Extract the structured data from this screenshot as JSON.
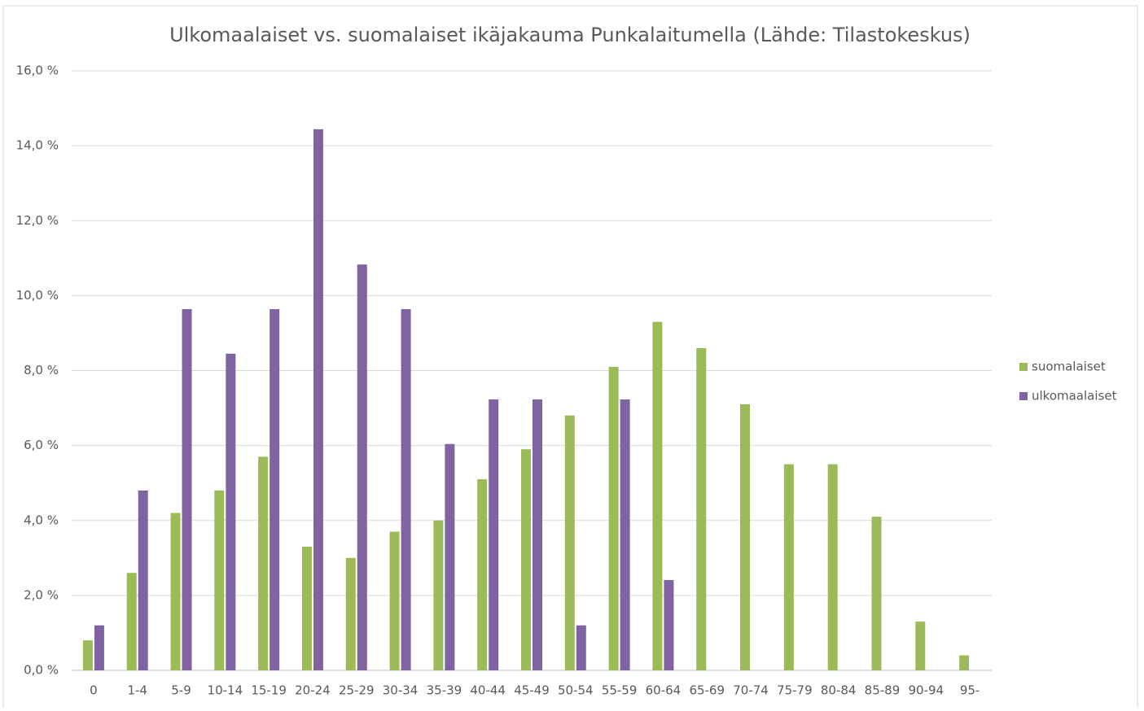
{
  "chart_data": {
    "type": "bar",
    "title": "Ulkomaalaiset vs. suomalaiset ikäjakauma Punkalaitumella (Lähde: Tilastokeskus)",
    "categories": [
      "0",
      "1-4",
      "5-9",
      "10-14",
      "15-19",
      "20-24",
      "25-29",
      "30-34",
      "35-39",
      "40-44",
      "45-49",
      "50-54",
      "55-59",
      "60-64",
      "65-69",
      "70-74",
      "75-79",
      "80-84",
      "85-89",
      "90-94",
      "95-"
    ],
    "series": [
      {
        "name": "suomalaiset",
        "color": "#9bbb59",
        "values": [
          0.8,
          2.6,
          4.2,
          4.8,
          5.7,
          3.3,
          3.0,
          3.7,
          4.0,
          5.1,
          5.9,
          6.8,
          8.1,
          9.3,
          8.6,
          7.1,
          5.5,
          5.5,
          4.1,
          1.3,
          0.4
        ]
      },
      {
        "name": "ulkomaalaiset",
        "color": "#8064a2",
        "values": [
          1.2,
          4.8,
          9.64,
          8.45,
          9.64,
          14.44,
          10.83,
          9.64,
          6.04,
          7.23,
          7.23,
          1.2,
          7.23,
          2.41,
          null,
          null,
          null,
          null,
          null,
          null,
          null
        ]
      }
    ],
    "ylim": [
      0,
      16
    ],
    "yticks": [
      {
        "value": 0,
        "label": "0,0 %"
      },
      {
        "value": 2,
        "label": "2,0 %"
      },
      {
        "value": 4,
        "label": "4,0 %"
      },
      {
        "value": 6,
        "label": "6,0 %"
      },
      {
        "value": 8,
        "label": "8,0 %"
      },
      {
        "value": 10,
        "label": "10,0 %"
      },
      {
        "value": 12,
        "label": "12,0 %"
      },
      {
        "value": 14,
        "label": "14,0 %"
      },
      {
        "value": 16,
        "label": "16,0 %"
      }
    ],
    "grid": true,
    "legend": "right"
  }
}
